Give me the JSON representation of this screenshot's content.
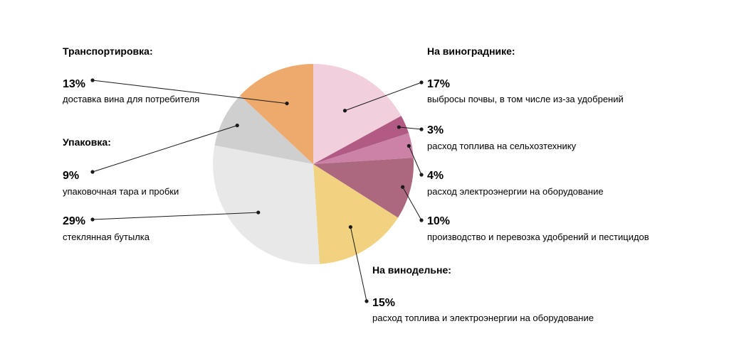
{
  "chart_data": {
    "type": "pie",
    "start_angle_deg": 0,
    "direction": "clockwise",
    "slices": [
      {
        "value": 17,
        "color": "#F2CFDD",
        "label": "17%",
        "desc": "выбросы почвы, в том числе из-за удобрений",
        "group": "На винограднике:"
      },
      {
        "value": 3,
        "color": "#B05A84",
        "label": "3%",
        "desc": "расход топлива на сельхозтехнику",
        "group": "На винограднике:"
      },
      {
        "value": 4,
        "color": "#CC82A6",
        "label": "4%",
        "desc": "расход электроэнергии на оборудование",
        "group": "На винограднике:"
      },
      {
        "value": 10,
        "color": "#AB687E",
        "label": "10%",
        "desc": "производство и перевозка удобрений и пестицидов",
        "group": "На винограднике:"
      },
      {
        "value": 15,
        "color": "#F1D281",
        "label": "15%",
        "desc": "расход топлива и электроэнергии на оборудование",
        "group": "На винодельне:"
      },
      {
        "value": 29,
        "color": "#E8E8E8",
        "label": "29%",
        "desc": "стеклянная бутылка",
        "group": "Упаковка:"
      },
      {
        "value": 9,
        "color": "#CFCFCF",
        "label": "9%",
        "desc": "упаковочная тара и пробки",
        "group": "Упаковка:"
      },
      {
        "value": 13,
        "color": "#EEAA6C",
        "label": "13%",
        "desc": "доставка вина для потребителя",
        "group": "Транспортировка:"
      }
    ],
    "groups": [
      "На винограднике:",
      "На винодельне:",
      "Упаковка:",
      "Транспортировка:"
    ]
  }
}
